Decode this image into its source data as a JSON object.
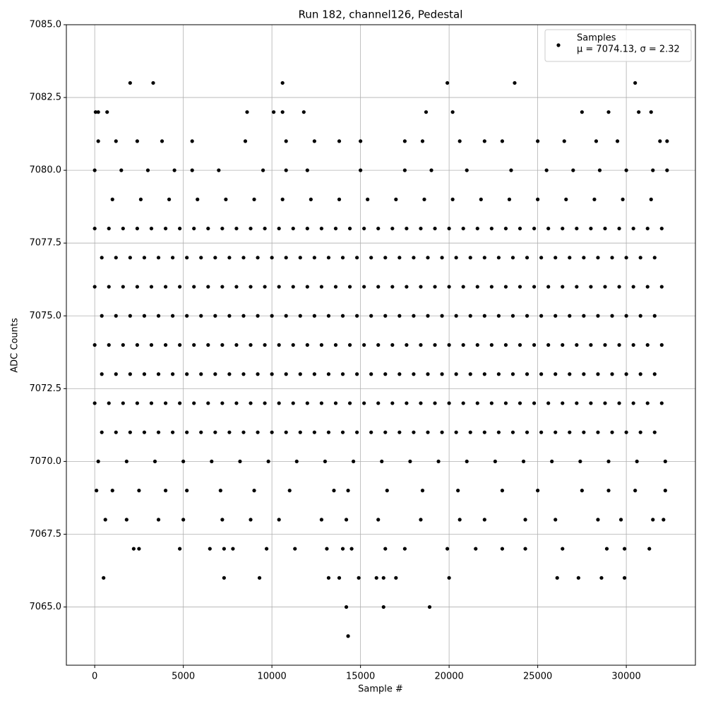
{
  "chart_data": {
    "type": "scatter",
    "title": "Run 182, channel126, Pedestal",
    "xlabel": "Sample #",
    "ylabel": "ADC Counts",
    "legend_note": "μ = 7074.13, σ = 2.32",
    "legend": "upper right",
    "grid": true,
    "xlim": [
      -1600,
      33900
    ],
    "ylim": [
      7063,
      7085
    ],
    "xticks": [
      0,
      5000,
      10000,
      15000,
      20000,
      25000,
      30000
    ],
    "yticks": [
      {
        "value": 7065,
        "label": "7065.0"
      },
      {
        "value": 7067.5,
        "label": "7067.5"
      },
      {
        "value": 7070,
        "label": "7070.0"
      },
      {
        "value": 7072.5,
        "label": "7072.5"
      },
      {
        "value": 7075,
        "label": "7075.0"
      },
      {
        "value": 7077.5,
        "label": "7077.5"
      },
      {
        "value": 7080,
        "label": "7080.0"
      },
      {
        "value": 7082.5,
        "label": "7082.5"
      },
      {
        "value": 7085,
        "label": "7085.0"
      }
    ],
    "series": [
      {
        "name": "Samples",
        "color": "#000000",
        "x": [
          0,
          800,
          1600,
          2400,
          3200,
          4000,
          4800,
          5600,
          6400,
          7200,
          8000,
          8800,
          9600,
          10400,
          11200,
          12000,
          12800,
          13600,
          14400,
          15200,
          16000,
          16800,
          17600,
          18400,
          19200,
          20000,
          20800,
          21600,
          22400,
          23200,
          24000,
          24800,
          25600,
          26400,
          27200,
          28000,
          28800,
          29600,
          30400,
          31200,
          32000,
          400,
          1200,
          2000,
          2800,
          3600,
          4400,
          5200,
          6000,
          6800,
          7600,
          8400,
          9200,
          10000,
          10800,
          11600,
          12400,
          13200,
          14000,
          14800,
          15600,
          16400,
          17200,
          18000,
          18800,
          19600,
          20400,
          21200,
          22000,
          22800,
          23600,
          24400,
          25200,
          26000,
          26800,
          27600,
          28400,
          29200,
          30000,
          30800,
          31600,
          0,
          800,
          1600,
          2400,
          3200,
          4000,
          4800,
          5600,
          6400,
          7200,
          8000,
          8800,
          9600,
          10400,
          11200,
          12000,
          12800,
          13600,
          14400,
          15200,
          16000,
          16800,
          17600,
          18400,
          19200,
          20000,
          20800,
          21600,
          22400,
          23200,
          24000,
          24800,
          25600,
          26400,
          27200,
          28000,
          28800,
          29600,
          30400,
          31200,
          32000,
          400,
          1200,
          2000,
          2800,
          3600,
          4400,
          5200,
          6000,
          6800,
          7600,
          8400,
          9200,
          10000,
          10800,
          11600,
          12400,
          13200,
          14000,
          14800,
          15600,
          16400,
          17200,
          18000,
          18800,
          19600,
          20400,
          21200,
          22000,
          22800,
          23600,
          24400,
          25200,
          26000,
          26800,
          27600,
          28400,
          29200,
          30000,
          30800,
          31600,
          0,
          800,
          1600,
          2400,
          3200,
          4000,
          4800,
          5600,
          6400,
          7200,
          8000,
          8800,
          9600,
          10400,
          11200,
          12000,
          12800,
          13600,
          14400,
          15200,
          16000,
          16800,
          17600,
          18400,
          19200,
          20000,
          20800,
          21600,
          22400,
          23200,
          24000,
          24800,
          25600,
          26400,
          27200,
          28000,
          28800,
          29600,
          30400,
          31200,
          32000,
          400,
          1200,
          2000,
          2800,
          3600,
          4400,
          5200,
          6000,
          6800,
          7600,
          8400,
          9200,
          10000,
          10800,
          11600,
          12400,
          13200,
          14000,
          14800,
          15600,
          16400,
          17200,
          18000,
          18800,
          19600,
          20400,
          21200,
          22000,
          22800,
          23600,
          24400,
          25200,
          26000,
          26800,
          27600,
          28400,
          29200,
          30000,
          30800,
          31600,
          0,
          800,
          1600,
          2400,
          3200,
          4000,
          4800,
          5600,
          6400,
          7200,
          8000,
          8800,
          9600,
          10400,
          11200,
          12000,
          12800,
          13600,
          14400,
          15200,
          16000,
          16800,
          17600,
          18400,
          19200,
          20000,
          20800,
          21600,
          22400,
          23200,
          24000,
          24800,
          25600,
          26400,
          27200,
          28000,
          28800,
          29600,
          30400,
          31200,
          32000,
          400,
          1200,
          2000,
          2800,
          3600,
          4400,
          5200,
          6000,
          6800,
          7600,
          8400,
          9200,
          10000,
          10800,
          11600,
          12400,
          13200,
          14000,
          14800,
          15600,
          16400,
          17200,
          18000,
          18800,
          19600,
          20400,
          21200,
          22000,
          22800,
          23600,
          24400,
          25200,
          26000,
          26800,
          27600,
          28400,
          29200,
          30000,
          30800,
          31600,
          200,
          1800,
          3400,
          5000,
          6600,
          8200,
          9800,
          11400,
          13000,
          14600,
          16200,
          17800,
          19400,
          21000,
          22600,
          24200,
          25800,
          27400,
          29000,
          30600,
          32200,
          1000,
          2600,
          4200,
          5800,
          7400,
          9000,
          10600,
          12200,
          13800,
          15400,
          17000,
          18600,
          20200,
          21800,
          23400,
          25000,
          26600,
          28200,
          29800,
          31400,
          0,
          1500,
          3000,
          4500,
          5500,
          7000,
          9500,
          10800,
          12000,
          15000,
          17500,
          19000,
          21000,
          23500,
          25500,
          27000,
          28500,
          30000,
          31500,
          32300,
          100,
          1000,
          2500,
          4000,
          5200,
          7100,
          9000,
          11000,
          13500,
          14300,
          16500,
          18500,
          20500,
          23000,
          25000,
          27500,
          29000,
          30500,
          32200,
          600,
          1800,
          3600,
          5000,
          7200,
          8800,
          10400,
          12800,
          14200,
          16000,
          18400,
          20600,
          22000,
          24300,
          26000,
          28400,
          29700,
          31500,
          32100,
          200,
          1200,
          2400,
          3800,
          5500,
          8500,
          10800,
          12400,
          13800,
          15000,
          17500,
          18500,
          20600,
          22000,
          23000,
          25000,
          26500,
          28300,
          29500,
          31900,
          32300,
          2200,
          2500,
          4800,
          6500,
          7300,
          7800,
          9700,
          11300,
          13100,
          14000,
          14500,
          16400,
          17500,
          19900,
          21500,
          23000,
          24300,
          26400,
          28900,
          29900,
          31300,
          50,
          200,
          700,
          8600,
          10100,
          10600,
          11800,
          18700,
          20200,
          27500,
          29000,
          30700,
          31400,
          500,
          7300,
          9300,
          13200,
          13800,
          14900,
          15900,
          16300,
          17000,
          20000,
          26100,
          27300,
          28600,
          29900,
          2000,
          3300,
          10600,
          19900,
          23700,
          30500,
          14200,
          16300,
          18900,
          14300
        ],
        "values": [
          7078,
          7078,
          7078,
          7078,
          7078,
          7078,
          7078,
          7078,
          7078,
          7078,
          7078,
          7078,
          7078,
          7078,
          7078,
          7078,
          7078,
          7078,
          7078,
          7078,
          7078,
          7078,
          7078,
          7078,
          7078,
          7078,
          7078,
          7078,
          7078,
          7078,
          7078,
          7078,
          7078,
          7078,
          7078,
          7078,
          7078,
          7078,
          7078,
          7078,
          7078,
          7077,
          7077,
          7077,
          7077,
          7077,
          7077,
          7077,
          7077,
          7077,
          7077,
          7077,
          7077,
          7077,
          7077,
          7077,
          7077,
          7077,
          7077,
          7077,
          7077,
          7077,
          7077,
          7077,
          7077,
          7077,
          7077,
          7077,
          7077,
          7077,
          7077,
          7077,
          7077,
          7077,
          7077,
          7077,
          7077,
          7077,
          7077,
          7077,
          7077,
          7076,
          7076,
          7076,
          7076,
          7076,
          7076,
          7076,
          7076,
          7076,
          7076,
          7076,
          7076,
          7076,
          7076,
          7076,
          7076,
          7076,
          7076,
          7076,
          7076,
          7076,
          7076,
          7076,
          7076,
          7076,
          7076,
          7076,
          7076,
          7076,
          7076,
          7076,
          7076,
          7076,
          7076,
          7076,
          7076,
          7076,
          7076,
          7076,
          7076,
          7076,
          7075,
          7075,
          7075,
          7075,
          7075,
          7075,
          7075,
          7075,
          7075,
          7075,
          7075,
          7075,
          7075,
          7075,
          7075,
          7075,
          7075,
          7075,
          7075,
          7075,
          7075,
          7075,
          7075,
          7075,
          7075,
          7075,
          7075,
          7075,
          7075,
          7075,
          7075,
          7075,
          7075,
          7075,
          7075,
          7075,
          7075,
          7075,
          7075,
          7075,
          7074,
          7074,
          7074,
          7074,
          7074,
          7074,
          7074,
          7074,
          7074,
          7074,
          7074,
          7074,
          7074,
          7074,
          7074,
          7074,
          7074,
          7074,
          7074,
          7074,
          7074,
          7074,
          7074,
          7074,
          7074,
          7074,
          7074,
          7074,
          7074,
          7074,
          7074,
          7074,
          7074,
          7074,
          7074,
          7074,
          7074,
          7074,
          7074,
          7074,
          7074,
          7073,
          7073,
          7073,
          7073,
          7073,
          7073,
          7073,
          7073,
          7073,
          7073,
          7073,
          7073,
          7073,
          7073,
          7073,
          7073,
          7073,
          7073,
          7073,
          7073,
          7073,
          7073,
          7073,
          7073,
          7073,
          7073,
          7073,
          7073,
          7073,
          7073,
          7073,
          7073,
          7073,
          7073,
          7073,
          7073,
          7073,
          7073,
          7073,
          7073,
          7072,
          7072,
          7072,
          7072,
          7072,
          7072,
          7072,
          7072,
          7072,
          7072,
          7072,
          7072,
          7072,
          7072,
          7072,
          7072,
          7072,
          7072,
          7072,
          7072,
          7072,
          7072,
          7072,
          7072,
          7072,
          7072,
          7072,
          7072,
          7072,
          7072,
          7072,
          7072,
          7072,
          7072,
          7072,
          7072,
          7072,
          7072,
          7072,
          7072,
          7072,
          7071,
          7071,
          7071,
          7071,
          7071,
          7071,
          7071,
          7071,
          7071,
          7071,
          7071,
          7071,
          7071,
          7071,
          7071,
          7071,
          7071,
          7071,
          7071,
          7071,
          7071,
          7071,
          7071,
          7071,
          7071,
          7071,
          7071,
          7071,
          7071,
          7071,
          7071,
          7071,
          7071,
          7071,
          7071,
          7071,
          7071,
          7071,
          7071,
          7071,
          7070,
          7070,
          7070,
          7070,
          7070,
          7070,
          7070,
          7070,
          7070,
          7070,
          7070,
          7070,
          7070,
          7070,
          7070,
          7070,
          7070,
          7070,
          7070,
          7070,
          7070,
          7079,
          7079,
          7079,
          7079,
          7079,
          7079,
          7079,
          7079,
          7079,
          7079,
          7079,
          7079,
          7079,
          7079,
          7079,
          7079,
          7079,
          7079,
          7079,
          7079,
          7080,
          7080,
          7080,
          7080,
          7080,
          7080,
          7080,
          7080,
          7080,
          7080,
          7080,
          7080,
          7080,
          7080,
          7080,
          7080,
          7080,
          7080,
          7080,
          7080,
          7069,
          7069,
          7069,
          7069,
          7069,
          7069,
          7069,
          7069,
          7069,
          7069,
          7069,
          7069,
          7069,
          7069,
          7069,
          7069,
          7069,
          7069,
          7069,
          7068,
          7068,
          7068,
          7068,
          7068,
          7068,
          7068,
          7068,
          7068,
          7068,
          7068,
          7068,
          7068,
          7068,
          7068,
          7068,
          7068,
          7068,
          7068,
          7081,
          7081,
          7081,
          7081,
          7081,
          7081,
          7081,
          7081,
          7081,
          7081,
          7081,
          7081,
          7081,
          7081,
          7081,
          7081,
          7081,
          7081,
          7081,
          7081,
          7081,
          7067,
          7067,
          7067,
          7067,
          7067,
          7067,
          7067,
          7067,
          7067,
          7067,
          7067,
          7067,
          7067,
          7067,
          7067,
          7067,
          7067,
          7067,
          7067,
          7067,
          7067,
          7082,
          7082,
          7082,
          7082,
          7082,
          7082,
          7082,
          7082,
          7082,
          7082,
          7082,
          7082,
          7082,
          7066,
          7066,
          7066,
          7066,
          7066,
          7066,
          7066,
          7066,
          7066,
          7066,
          7066,
          7066,
          7066,
          7066,
          7083,
          7083,
          7083,
          7083,
          7083,
          7083,
          7065,
          7065,
          7065,
          7064
        ]
      }
    ]
  }
}
